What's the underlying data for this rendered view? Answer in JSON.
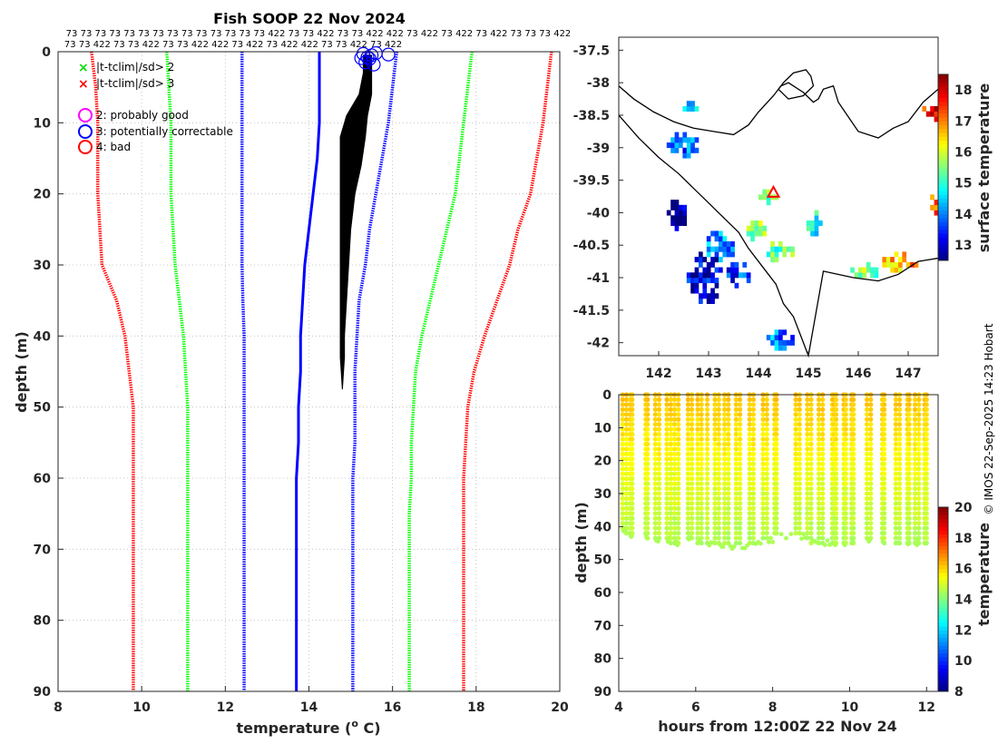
{
  "colors": {
    "clim_mean": "#0000ff",
    "sd2": "#00ff00",
    "sd3": "#ff0000",
    "profile": "#000000",
    "flag_good": "#ff00ff",
    "flag_correctable": "#0000ff",
    "flag_bad": "#ff0000"
  },
  "copyright": "© IMOS 22-Sep-2025 14:23 Hobart",
  "chart_data": [
    {
      "type": "line",
      "id": "profile",
      "title": "Fish SOOP 22 Nov 2024",
      "xlabel": "temperature (",
      "xlabel_sup": "o",
      "xlabel_end": " C)",
      "ylabel": "depth (m)",
      "xlim": [
        8,
        20
      ],
      "ylim": [
        0,
        90
      ],
      "xticks": [
        8,
        10,
        12,
        14,
        16,
        18,
        20
      ],
      "yticks": [
        0,
        10,
        20,
        30,
        40,
        50,
        60,
        70,
        80,
        90
      ],
      "grid": true,
      "qc_codes_row1": "73 73 73 73 73 73 73 73 73 73 73 73 73 73 422 73 73 422 73 73 422 422 73 422 73 422 73 422 73 73 73 422",
      "qc_codes_row2": "73 73 422 73 73 422 73 73 422 422 73 422 73 422 422 73 73 422 73 422",
      "legend": [
        {
          "marker": "x",
          "color": "#00dd00",
          "label": "|t-tclim|/sd> 2"
        },
        {
          "marker": "x",
          "color": "#ff0000",
          "label": "|t-tclim|/sd> 3"
        },
        {
          "marker": "o",
          "color": "#ff00ff",
          "label": "2: probably good"
        },
        {
          "marker": "o",
          "color": "#0000ff",
          "label": "3: potentially correctable"
        },
        {
          "marker": "o",
          "color": "#ff0000",
          "label": "4: bad"
        }
      ],
      "depth": [
        0,
        5,
        10,
        15,
        20,
        25,
        30,
        35,
        40,
        45,
        50,
        55,
        60,
        65,
        70,
        75,
        80,
        85,
        90
      ],
      "series": [
        {
          "name": "clim_minus_3sd",
          "color": "#ff0000",
          "values": [
            8.8,
            8.9,
            8.95,
            8.95,
            8.95,
            9.0,
            9.05,
            9.4,
            9.6,
            9.7,
            9.8,
            9.8,
            9.8,
            9.8,
            9.8,
            9.8,
            9.8,
            9.8,
            9.8
          ]
        },
        {
          "name": "clim_minus_2sd",
          "color": "#00ff00",
          "values": [
            10.6,
            10.65,
            10.7,
            10.7,
            10.7,
            10.75,
            10.8,
            10.9,
            11.0,
            11.05,
            11.1,
            11.1,
            11.1,
            11.1,
            11.1,
            11.1,
            11.1,
            11.1,
            11.1
          ]
        },
        {
          "name": "clim_minus_1sd",
          "color": "#0000ff",
          "values": [
            12.4,
            12.4,
            12.4,
            12.4,
            12.4,
            12.4,
            12.4,
            12.42,
            12.45,
            12.45,
            12.45,
            12.45,
            12.45,
            12.45,
            12.45,
            12.45,
            12.45,
            12.45,
            12.45
          ]
        },
        {
          "name": "clim_mean",
          "color": "#0000ff",
          "values": [
            14.25,
            14.25,
            14.25,
            14.2,
            14.1,
            14.0,
            13.9,
            13.85,
            13.8,
            13.8,
            13.75,
            13.75,
            13.7,
            13.7,
            13.7,
            13.7,
            13.7,
            13.7,
            13.7
          ]
        },
        {
          "name": "clim_plus_1sd",
          "color": "#0000ff",
          "values": [
            16.1,
            16.0,
            15.9,
            15.75,
            15.6,
            15.45,
            15.35,
            15.2,
            15.15,
            15.1,
            15.1,
            15.1,
            15.05,
            15.05,
            15.05,
            15.05,
            15.05,
            15.05,
            15.05
          ]
        },
        {
          "name": "clim_plus_2sd",
          "color": "#00ff00",
          "values": [
            17.9,
            17.8,
            17.7,
            17.6,
            17.5,
            17.3,
            17.1,
            16.9,
            16.7,
            16.55,
            16.5,
            16.45,
            16.45,
            16.4,
            16.4,
            16.4,
            16.4,
            16.4,
            16.4
          ]
        },
        {
          "name": "clim_plus_3sd",
          "color": "#ff0000",
          "values": [
            19.8,
            19.7,
            19.6,
            19.45,
            19.3,
            19.0,
            18.8,
            18.5,
            18.2,
            17.95,
            17.8,
            17.75,
            17.7,
            17.7,
            17.7,
            17.7,
            17.7,
            17.7,
            17.7
          ]
        }
      ],
      "profiles": {
        "color": "#000000",
        "depth": [
          0.5,
          3,
          6,
          9,
          12,
          16,
          20,
          25,
          30,
          35,
          40,
          43,
          47.5
        ],
        "left_edge": [
          15.3,
          15.3,
          15.2,
          14.9,
          14.75,
          14.75,
          14.75,
          14.75,
          14.75,
          14.75,
          14.75,
          14.75,
          14.8
        ],
        "right_edge": [
          15.5,
          15.5,
          15.5,
          15.4,
          15.35,
          15.25,
          15.1,
          15.0,
          14.95,
          14.9,
          14.85,
          14.85,
          14.8
        ]
      },
      "flag_points": {
        "flag": 3,
        "temperature": [
          15.3,
          15.4,
          15.5,
          15.6,
          15.35,
          15.45,
          15.9,
          15.25,
          15.55
        ],
        "depth": [
          0.3,
          0.8,
          0.5,
          0.2,
          1.5,
          1.0,
          0.4,
          0.9,
          1.8
        ]
      }
    },
    {
      "type": "heatmap",
      "id": "map",
      "colorbar_label": "surface temperature",
      "xlim": [
        141.2,
        147.6
      ],
      "ylim": [
        -42.2,
        -37.3
      ],
      "xticks": [
        142,
        143,
        144,
        145,
        146,
        147
      ],
      "yticks": [
        -37.5,
        -38,
        -38.5,
        -39,
        -39.5,
        -40,
        -40.5,
        -41,
        -41.5,
        -42
      ],
      "clim": [
        12.5,
        18.5
      ],
      "cbar_ticks": [
        13,
        14,
        15,
        16,
        17,
        18
      ],
      "marker": {
        "lon": 144.3,
        "lat": -39.7,
        "color": "#ff0000"
      },
      "coastlines": [
        {
          "lon": [
            141.2,
            141.5,
            141.9,
            142.3,
            142.7,
            143.1,
            143.5,
            143.8,
            144.0,
            144.3,
            144.45,
            144.6,
            144.9,
            145.1,
            145.2,
            145.3,
            145.5,
            145.6,
            146.0,
            146.4,
            146.7,
            147.0,
            147.3,
            147.6
          ],
          "lat": [
            -38.05,
            -38.25,
            -38.45,
            -38.6,
            -38.7,
            -38.75,
            -38.8,
            -38.65,
            -38.45,
            -38.2,
            -38.05,
            -38.0,
            -38.15,
            -38.3,
            -38.25,
            -38.1,
            -38.05,
            -38.3,
            -38.75,
            -38.85,
            -38.7,
            -38.6,
            -38.3,
            -38.1
          ]
        },
        {
          "lon": [
            144.5,
            144.7,
            144.95,
            145.05,
            145.1,
            144.9,
            144.6,
            144.4,
            144.5
          ],
          "lat": [
            -38.0,
            -37.85,
            -37.8,
            -37.9,
            -38.05,
            -38.2,
            -38.25,
            -38.1,
            -38.0
          ]
        },
        {
          "lon": [
            141.2,
            141.6,
            142.0,
            142.4,
            142.8,
            143.2,
            143.6,
            143.8,
            144.1,
            144.35,
            144.5,
            144.7,
            144.85,
            145.0,
            145.3,
            145.9,
            146.4,
            146.8,
            147.2,
            147.6
          ],
          "lat": [
            -38.5,
            -38.85,
            -39.15,
            -39.4,
            -39.7,
            -40.0,
            -40.3,
            -40.55,
            -40.85,
            -41.1,
            -41.4,
            -41.6,
            -41.9,
            -42.2,
            -40.9,
            -41.0,
            -41.05,
            -40.95,
            -40.75,
            -40.7
          ]
        }
      ]
    },
    {
      "type": "scatter",
      "id": "section",
      "xlabel": "hours from 12:00Z 22 Nov 24",
      "ylabel": "depth (m)",
      "colorbar_label": "temperature",
      "xlim": [
        4,
        12.3
      ],
      "ylim": [
        0,
        90
      ],
      "xticks": [
        4,
        6,
        8,
        10,
        12
      ],
      "yticks": [
        0,
        10,
        20,
        30,
        40,
        50,
        60,
        70,
        80,
        90
      ],
      "clim": [
        8,
        20
      ],
      "cbar_ticks": [
        8,
        10,
        12,
        14,
        16,
        18,
        20
      ],
      "casts_hours": [
        4.1,
        4.2,
        4.3,
        4.35,
        4.7,
        4.75,
        4.95,
        5.05,
        5.25,
        5.35,
        5.45,
        5.55,
        5.8,
        5.9,
        6.05,
        6.15,
        6.3,
        6.5,
        6.6,
        6.75,
        6.85,
        7.05,
        7.15,
        7.4,
        7.5,
        7.75,
        7.85,
        8.05,
        8.1,
        8.6,
        8.7,
        8.9,
        9.0,
        9.2,
        9.3,
        9.55,
        9.6,
        9.65,
        9.85,
        9.9,
        10.05,
        10.1,
        10.45,
        10.55,
        10.85,
        10.9,
        11.2,
        11.3,
        11.5,
        11.55,
        11.7,
        11.8,
        11.95,
        12.0
      ],
      "casts_max_depth": [
        41,
        43,
        43,
        43,
        43,
        44,
        44,
        44,
        44,
        45,
        45,
        45,
        44,
        44,
        45,
        46,
        45,
        46,
        46,
        46,
        46,
        46,
        46,
        45,
        45,
        44,
        44,
        43,
        43,
        43,
        43,
        44,
        45,
        45,
        45,
        46,
        46,
        46,
        45,
        45,
        45,
        45,
        44,
        44,
        44,
        45,
        45,
        45,
        45,
        45,
        45,
        45,
        45,
        45
      ],
      "surface_temp": 16.2,
      "deep_temp": 14.5
    }
  ]
}
